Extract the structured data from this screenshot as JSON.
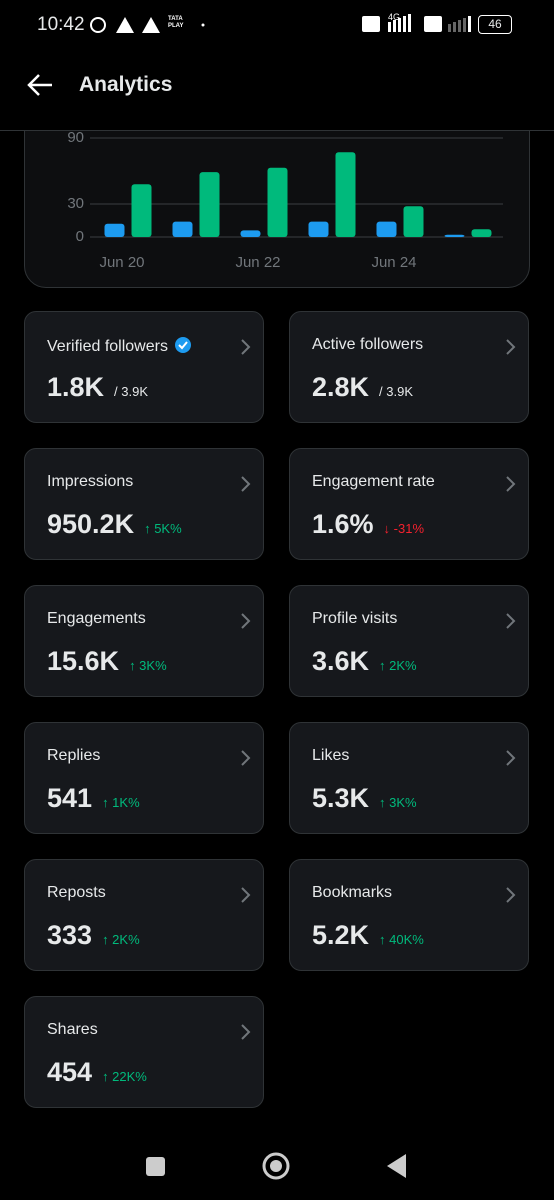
{
  "status_bar": {
    "time": "10:42",
    "carrier": "TATA PLAY",
    "network": "4G",
    "battery": "46"
  },
  "header": {
    "title": "Analytics"
  },
  "chart_data": {
    "type": "bar",
    "categories": [
      "Jun 20",
      null,
      "Jun 22",
      null,
      "Jun 24",
      null
    ],
    "series": [
      {
        "color": "#1d9bf0",
        "values": [
          12,
          14,
          6,
          14,
          14,
          2
        ]
      },
      {
        "color": "#00ba7c",
        "values": [
          48,
          59,
          63,
          77,
          28,
          7
        ]
      }
    ],
    "ylim": [
      0,
      90
    ],
    "yticks": [
      0,
      30,
      90
    ],
    "grid": true
  },
  "cards": [
    {
      "label": "Verified followers",
      "value": "1.8K",
      "total": "/ 3.9K",
      "verified": true
    },
    {
      "label": "Active followers",
      "value": "2.8K",
      "total": "/ 3.9K"
    },
    {
      "label": "Impressions",
      "value": "950.2K",
      "change": "↑ 5K%",
      "change_color": "#00ba7c"
    },
    {
      "label": "Engagement rate",
      "value": "1.6%",
      "change": "↓ -31%",
      "change_color": "#f4212e"
    },
    {
      "label": "Engagements",
      "value": "15.6K",
      "change": "↑ 3K%",
      "change_color": "#00ba7c"
    },
    {
      "label": "Profile visits",
      "value": "3.6K",
      "change": "↑ 2K%",
      "change_color": "#00ba7c"
    },
    {
      "label": "Replies",
      "value": "541",
      "change": "↑ 1K%",
      "change_color": "#00ba7c"
    },
    {
      "label": "Likes",
      "value": "5.3K",
      "change": "↑ 3K%",
      "change_color": "#00ba7c"
    },
    {
      "label": "Reposts",
      "value": "333",
      "change": "↑ 2K%",
      "change_color": "#00ba7c"
    },
    {
      "label": "Bookmarks",
      "value": "5.2K",
      "change": "↑ 40K%",
      "change_color": "#00ba7c"
    },
    {
      "label": "Shares",
      "value": "454",
      "change": "↑ 22K%",
      "change_color": "#00ba7c"
    }
  ]
}
